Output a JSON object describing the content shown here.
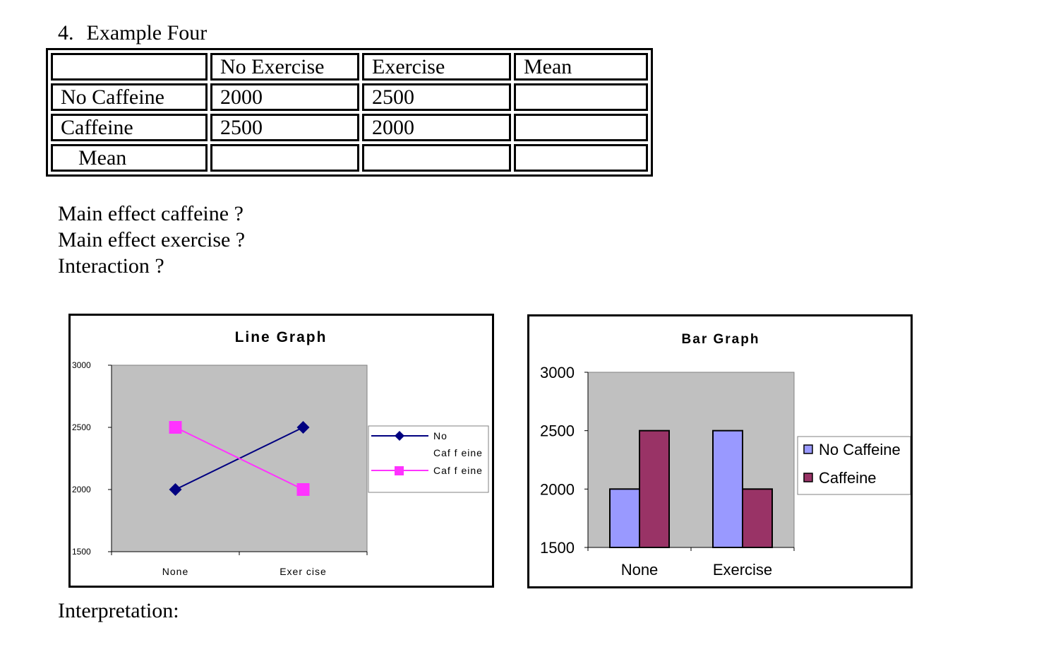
{
  "heading": {
    "number": "4.",
    "title": "Example Four"
  },
  "table": {
    "headers": [
      "",
      "No Exercise",
      "Exercise",
      "Mean"
    ],
    "rows": [
      [
        "No Caffeine",
        "2000",
        "2500",
        ""
      ],
      [
        "Caffeine",
        "2500",
        "2000",
        ""
      ],
      [
        "Mean",
        "",
        "",
        ""
      ]
    ]
  },
  "questions": [
    "Main effect caffeine ?",
    "Main effect exercise ?",
    "Interaction ?"
  ],
  "interpretation_label": "Interpretation:",
  "chart_data": [
    {
      "type": "line",
      "title": "Line Graph",
      "categories": [
        "None",
        "Exercise"
      ],
      "ylim": [
        1500,
        3000
      ],
      "yticks": [
        "3000",
        "2500",
        "2000",
        "1500"
      ],
      "grid": false,
      "legend_placement": "right",
      "plot_bg": "#c0c0c0",
      "series": [
        {
          "name": "No Caffeine",
          "legend_lines": [
            "No",
            "Caf f eine"
          ],
          "values": [
            2000,
            2500
          ],
          "color": "#000080",
          "marker": "diamond"
        },
        {
          "name": "Caffeine",
          "legend_lines": [
            "Caf f eine"
          ],
          "values": [
            2500,
            2000
          ],
          "color": "#ff33ff",
          "marker": "square"
        }
      ],
      "tick_labels_x": [
        "None",
        "Exer cise"
      ]
    },
    {
      "type": "bar",
      "title": "Bar Graph",
      "categories": [
        "None",
        "Exercise"
      ],
      "ylim": [
        1500,
        3000
      ],
      "yticks": [
        "3000",
        "2500",
        "2000",
        "1500"
      ],
      "grid": false,
      "legend_placement": "right",
      "plot_bg": "#c0c0c0",
      "series": [
        {
          "name": "No Caffeine",
          "values": [
            2000,
            2500
          ],
          "color": "#9999ff"
        },
        {
          "name": "Caffeine",
          "values": [
            2500,
            2000
          ],
          "color": "#993366"
        }
      ]
    }
  ]
}
